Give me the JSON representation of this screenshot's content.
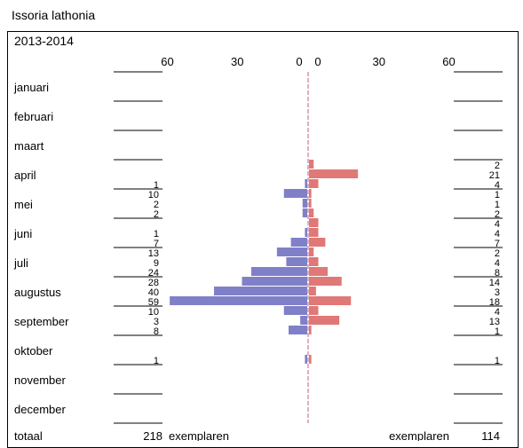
{
  "title": "Issoria lathonia",
  "period": "2013-2014",
  "colors": {
    "left_bar": "#8080c8",
    "right_bar": "#e07878",
    "axis": "#c06080"
  },
  "chart_data": {
    "type": "bar",
    "orientation": "horizontal-back-to-back",
    "axis_ticks_left": [
      "60",
      "30",
      "0"
    ],
    "axis_ticks_right": [
      "0",
      "30",
      "60"
    ],
    "axis_range_left": [
      60,
      0
    ],
    "axis_range_right": [
      0,
      60
    ],
    "months": [
      "januari",
      "februari",
      "maart",
      "april",
      "mei",
      "juni",
      "juli",
      "augustus",
      "september",
      "oktober",
      "november",
      "december"
    ],
    "rows_per_month": 3,
    "left_values": [
      [
        0,
        0,
        0
      ],
      [
        0,
        0,
        0
      ],
      [
        0,
        0,
        0
      ],
      [
        0,
        0,
        1
      ],
      [
        10,
        2,
        2
      ],
      [
        0,
        1,
        7
      ],
      [
        13,
        9,
        24
      ],
      [
        28,
        40,
        59
      ],
      [
        10,
        3,
        8
      ],
      [
        0,
        0,
        1
      ],
      [
        0,
        0,
        0
      ],
      [
        0,
        0,
        0
      ]
    ],
    "right_values": [
      [
        0,
        0,
        0
      ],
      [
        0,
        0,
        0
      ],
      [
        0,
        0,
        0
      ],
      [
        2,
        21,
        4
      ],
      [
        1,
        1,
        2
      ],
      [
        4,
        4,
        7
      ],
      [
        2,
        4,
        8
      ],
      [
        14,
        3,
        18
      ],
      [
        4,
        13,
        1
      ],
      [
        0,
        0,
        1
      ],
      [
        0,
        0,
        0
      ],
      [
        0,
        0,
        0
      ]
    ],
    "total_label": "totaal",
    "left_total": "218",
    "right_total": "114",
    "unit_label": "exemplaren"
  }
}
